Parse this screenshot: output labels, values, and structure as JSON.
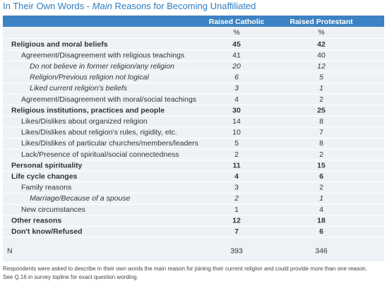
{
  "header": {
    "title_prefix": "In Their Own Words - ",
    "title_emphasis": "Main",
    "title_suffix": " Reasons for Becoming Unaffiliated"
  },
  "table": {
    "columns": [
      "Raised Catholic",
      "Raised Protestant"
    ],
    "units": [
      "%",
      "%"
    ],
    "rows": [
      {
        "label": "Religious and moral beliefs",
        "style": "bold",
        "values": [
          45,
          42
        ]
      },
      {
        "label": "Agreement/Disagreement with religious teachings",
        "style": "indent",
        "values": [
          41,
          40
        ]
      },
      {
        "label": "Do not believe in former religion/any religion",
        "style": "italic",
        "values": [
          20,
          12
        ]
      },
      {
        "label": "Religion/Previous religion not logical",
        "style": "italic",
        "values": [
          6,
          5
        ]
      },
      {
        "label": "Liked current religion's beliefs",
        "style": "italic",
        "values": [
          3,
          1
        ]
      },
      {
        "label": "Agreement/Disagreement with moral/social teachings",
        "style": "indent",
        "values": [
          4,
          2
        ]
      },
      {
        "label": "Religious institutions, practices and people",
        "style": "bold",
        "values": [
          30,
          25
        ]
      },
      {
        "label": "Likes/Dislikes about organized religion",
        "style": "indent",
        "values": [
          14,
          8
        ]
      },
      {
        "label": "Likes/Dislikes about religion's rules, rigidity, etc.",
        "style": "indent",
        "values": [
          10,
          7
        ]
      },
      {
        "label": "Likes/Dislikes of particular churches/members/leaders",
        "style": "indent",
        "values": [
          5,
          8
        ]
      },
      {
        "label": "Lack/Presence of spiritual/social connectedness",
        "style": "indent",
        "values": [
          2,
          2
        ]
      },
      {
        "label": "Personal spirituality",
        "style": "bold",
        "values": [
          11,
          15
        ]
      },
      {
        "label": "Life cycle changes",
        "style": "bold",
        "values": [
          4,
          6
        ]
      },
      {
        "label": "Family reasons",
        "style": "indent",
        "values": [
          3,
          2
        ]
      },
      {
        "label": "Marriage/Because of a spouse",
        "style": "italic",
        "values": [
          2,
          1
        ]
      },
      {
        "label": "New circumstances",
        "style": "indent",
        "values": [
          1,
          4
        ]
      },
      {
        "label": "Other reasons",
        "style": "bold",
        "values": [
          12,
          18
        ]
      },
      {
        "label": "Don't know/Refused",
        "style": "bold",
        "values": [
          7,
          6
        ]
      }
    ],
    "total": {
      "label": "N",
      "values": [
        393,
        346
      ]
    }
  },
  "footnote": [
    "Respondents were asked to describe in their own words the main reason for joining their current religion and could provide more than one reason.",
    "See Q.16 in survey topline for exact question wording."
  ]
}
